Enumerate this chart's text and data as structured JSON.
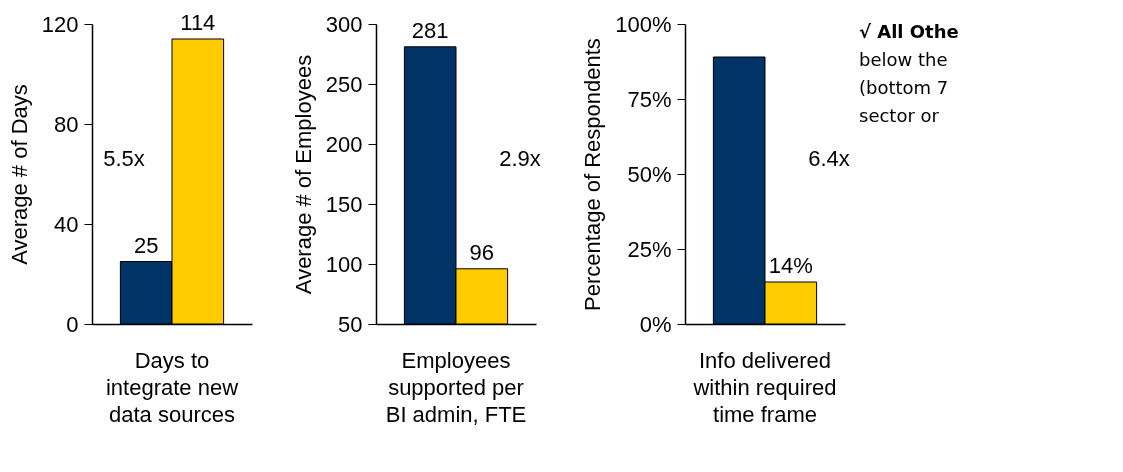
{
  "chart_data": [
    {
      "type": "bar",
      "categories": [
        "Days to integrate new data sources"
      ],
      "ylabel": "Average # of Days",
      "ylim": [
        0,
        120
      ],
      "yticks": [
        0,
        40,
        80,
        120
      ],
      "data_labels": true,
      "annotations": [
        "5.5x"
      ],
      "series": [
        {
          "color": "#003366",
          "values": [
            25
          ]
        },
        {
          "color": "#ffcc00",
          "values": [
            114
          ]
        }
      ]
    },
    {
      "type": "bar",
      "categories": [
        "Employees supported per BI admin, FTE"
      ],
      "ylabel": "Average # of Employees",
      "ylim": [
        50,
        300
      ],
      "yticks": [
        50,
        100,
        150,
        200,
        250,
        300
      ],
      "data_labels": true,
      "annotations": [
        "2.9x"
      ],
      "series": [
        {
          "color": "#003366",
          "values": [
            281
          ]
        },
        {
          "color": "#ffcc00",
          "values": [
            96
          ]
        }
      ]
    },
    {
      "type": "bar",
      "categories": [
        "Info delivered within required time frame"
      ],
      "ylabel": "Percentage of Respondents",
      "ylim": [
        0,
        100
      ],
      "yticks": [
        {
          "value": 0,
          "label": "0%"
        },
        {
          "value": 25,
          "label": "25%"
        },
        {
          "value": 50,
          "label": "50%"
        },
        {
          "value": 75,
          "label": "75%"
        },
        {
          "value": 100,
          "label": "100%"
        }
      ],
      "annotations": [
        "6.4x",
        "√ All Othe",
        "below the",
        "(bottom 7",
        "sector or"
      ],
      "series": [
        {
          "color": "#003366",
          "values": [
            89
          ],
          "value_labels": [
            null
          ]
        },
        {
          "color": "#ffcc00",
          "values": [
            14
          ],
          "value_labels": [
            "14%"
          ]
        }
      ]
    }
  ]
}
